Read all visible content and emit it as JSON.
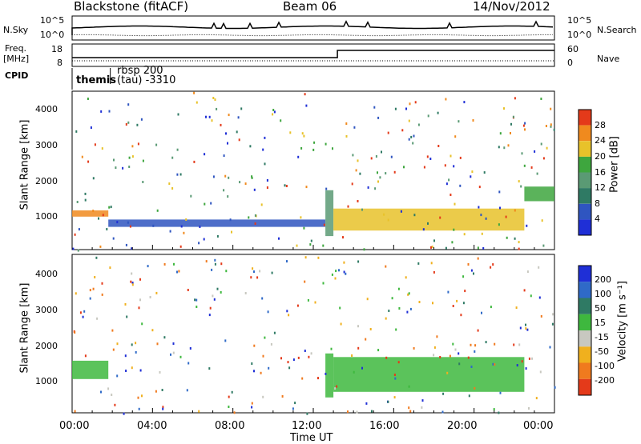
{
  "header": {
    "site": "Blackstone (fitACF)",
    "beam": "Beam 06",
    "date": "14/Nov/2012"
  },
  "params": {
    "nsky_label": "N.Sky",
    "nsky_ticks": [
      "10^5",
      "10^0"
    ],
    "nsearch_label": "N.Search",
    "nsearch_ticks": [
      "10^5",
      "10^0"
    ],
    "freq_label": "Freq.",
    "freq_unit": "[MHz]",
    "freq_ticks": [
      "18",
      "8"
    ],
    "nave_label": "Nave",
    "nave_ticks": [
      "60",
      "0"
    ],
    "cpid_label": "CPID",
    "cpid_entries": [
      "themis",
      "rbsp 200",
      "(tau) -3310"
    ]
  },
  "panels": {
    "power": {
      "ylabel": "Slant Range [km]",
      "yticks": [
        "1000",
        "2000",
        "3000",
        "4000"
      ],
      "cbar_label": "Power [dB]",
      "cbar_ticks": [
        "4",
        "8",
        "12",
        "16",
        "20",
        "24",
        "28"
      ],
      "colors": [
        "#1f2fd6",
        "#2f55c0",
        "#2f7a64",
        "#5a9a74",
        "#3ea63e",
        "#e8c22a",
        "#f08a1e",
        "#e43a1a"
      ]
    },
    "velocity": {
      "ylabel": "Slant Range [km]",
      "yticks": [
        "1000",
        "2000",
        "3000",
        "4000"
      ],
      "cbar_label": "Velocity [m s⁻¹]",
      "cbar_ticks": [
        "200",
        "100",
        "50",
        "15",
        "-15",
        "-50",
        "-100",
        "-200"
      ],
      "colors": [
        "#1f2fd6",
        "#2f6ac8",
        "#2f7a64",
        "#3eb83e",
        "#c8c8c0",
        "#f0b01e",
        "#f07a1e",
        "#e43a1a"
      ]
    }
  },
  "xaxis": {
    "ticks": [
      "00:00",
      "04:00",
      "08:00",
      "12:00",
      "16:00",
      "20:00",
      "00:00"
    ],
    "label": "Time UT"
  },
  "chart_data": {
    "type": "heatmap",
    "title": "Blackstone (fitACF)",
    "x_range_hours": [
      0,
      24
    ],
    "y_range_km": [
      180,
      4500
    ],
    "power_bands": [
      {
        "t0": 0.0,
        "t1": 1.8,
        "r0": 1080,
        "r1": 1250,
        "power_db": 26
      },
      {
        "t0": 1.8,
        "t1": 12.6,
        "r0": 800,
        "r1": 1000,
        "power_db": 6
      },
      {
        "t0": 12.6,
        "t1": 13.0,
        "r0": 550,
        "r1": 1800,
        "power_db": 14
      },
      {
        "t0": 13.0,
        "t1": 22.5,
        "r0": 700,
        "r1": 1300,
        "power_db": 20
      },
      {
        "t0": 22.5,
        "t1": 24.0,
        "r0": 1500,
        "r1": 1900,
        "power_db": 18
      }
    ],
    "velocity_bands": [
      {
        "t0": 0.0,
        "t1": 1.8,
        "r0": 1100,
        "r1": 1600,
        "velocity": 0
      },
      {
        "t0": 12.6,
        "t1": 13.0,
        "r0": 600,
        "r1": 1800,
        "velocity": 30
      },
      {
        "t0": 13.0,
        "t1": 22.5,
        "r0": 750,
        "r1": 1700,
        "velocity": 0
      }
    ],
    "nsky_level": "high",
    "freq_mhz": [
      8.5,
      8.5,
      12.0
    ],
    "nave_steps": [
      0,
      13.2,
      24
    ]
  }
}
